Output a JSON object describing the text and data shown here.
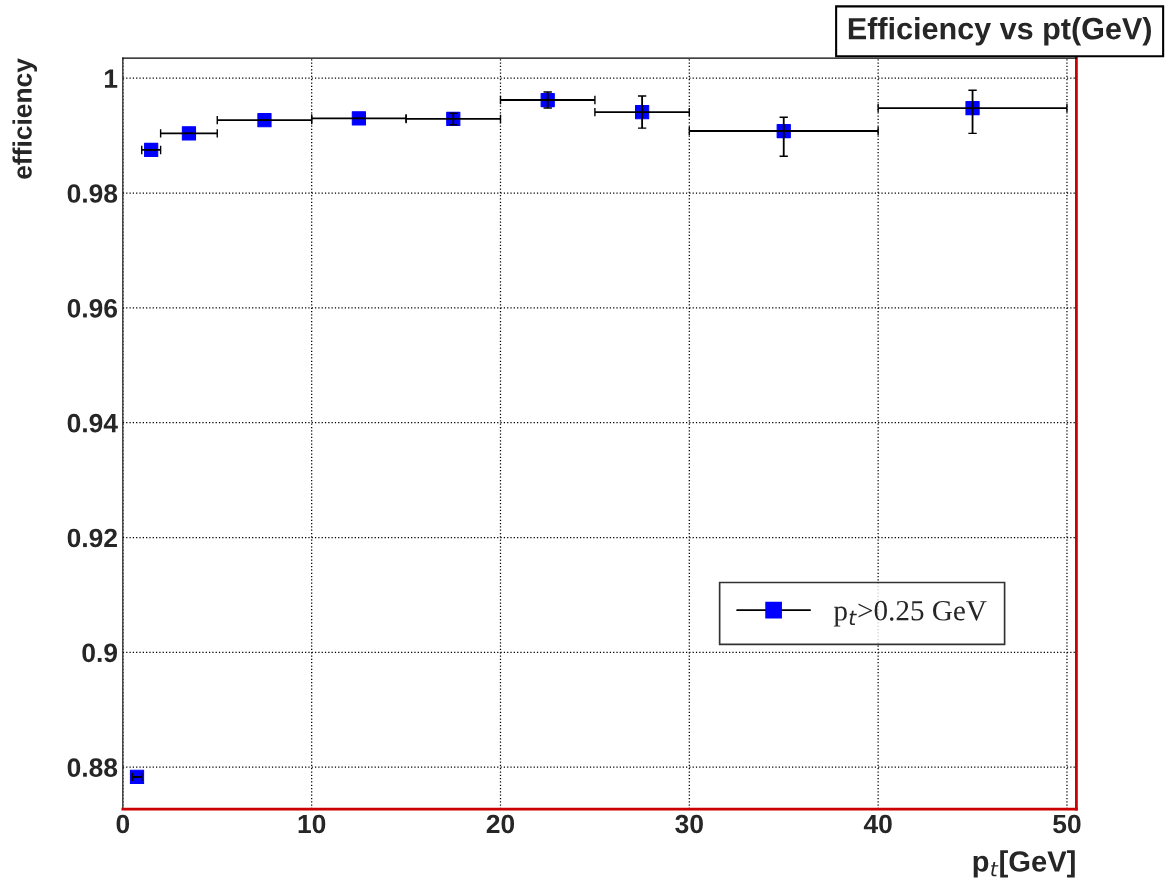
{
  "chart_data": {
    "type": "scatter",
    "title": "Efficiency vs pt(GeV)",
    "xlabel": "p$_{t}$[GeV]",
    "ylabel": "efficiency",
    "x": [
      0.75,
      1.5,
      3.5,
      7.5,
      12.5,
      17.5,
      22.5,
      27.5,
      35,
      45
    ],
    "series": [
      {
        "name": "p$_{t}$>0.25 GeV",
        "color": "#0000ff",
        "values": [
          0.8783,
          0.9875,
          0.9904,
          0.9927,
          0.993,
          0.9929,
          0.9962,
          0.9941,
          0.9908,
          0.9948
        ],
        "errors": [
          null,
          null,
          null,
          null,
          null,
          0.001,
          0.0014,
          0.0028,
          [
            0.9864,
            0.9932
          ],
          [
            0.9904,
            0.9979
          ]
        ],
        "xerrors": [
          [
            0.5,
            1
          ],
          [
            1,
            2
          ],
          [
            2,
            5
          ],
          [
            5,
            10
          ],
          [
            10,
            15
          ],
          [
            15,
            20
          ],
          [
            20,
            25
          ],
          [
            25,
            30
          ],
          [
            30,
            40
          ],
          [
            40,
            50
          ]
        ]
      }
    ],
    "xlim": [
      0,
      50.5
    ],
    "ylim": [
      0.8727,
      1.0035
    ],
    "xticks": [
      0,
      10,
      20,
      30,
      40,
      50
    ],
    "yticks": [
      0.88,
      0.9,
      0.92,
      0.94,
      0.96,
      0.98,
      1
    ],
    "marker": "square",
    "grid": true,
    "legend": "bottom right"
  }
}
